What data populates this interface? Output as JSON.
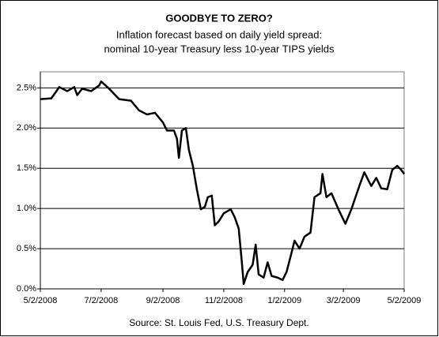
{
  "chart_data": {
    "type": "line",
    "title": "GOODBYE TO ZERO?",
    "subtitle": [
      "Inflation forecast based on daily yield spread:",
      "nominal 10-year Treasury less 10-year TIPS yields"
    ],
    "source": "Source: St. Louis Fed, U.S. Treasury Dept.",
    "x": [
      "5/2/2008",
      "5/13/2008",
      "5/21/2008",
      "5/29/2008",
      "6/5/2008",
      "6/8/2008",
      "6/13/2008",
      "6/22/2008",
      "6/30/2008",
      "7/2/2008",
      "7/10/2008",
      "7/20/2008",
      "8/1/2008",
      "8/9/2008",
      "8/17/2008",
      "8/25/2008",
      "9/2/2008",
      "9/6/2008",
      "9/13/2008",
      "9/16/2008",
      "9/18/2008",
      "9/21/2008",
      "9/25/2008",
      "9/28/2008",
      "10/2/2008",
      "10/6/2008",
      "10/10/2008",
      "10/14/2008",
      "10/17/2008",
      "10/21/2008",
      "10/24/2008",
      "10/28/2008",
      "11/2/2008",
      "11/9/2008",
      "11/13/2008",
      "11/17/2008",
      "11/20/2008",
      "11/22/2008",
      "11/26/2008",
      "12/1/2008",
      "12/4/2008",
      "12/7/2008",
      "12/12/2008",
      "12/16/2008",
      "12/20/2008",
      "12/26/2008",
      "12/31/2008",
      "1/4/2009",
      "1/9/2009",
      "1/12/2009",
      "1/17/2009",
      "1/22/2009",
      "1/28/2009",
      "2/1/2009",
      "2/7/2009",
      "2/9/2009",
      "2/13/2009",
      "2/18/2009",
      "2/25/2009",
      "3/4/2009",
      "3/10/2009",
      "3/18/2009",
      "3/23/2009",
      "3/30/2009",
      "4/4/2009",
      "4/9/2009",
      "4/15/2009",
      "4/20/2009",
      "4/25/2009",
      "4/29/2009",
      "5/2/2009"
    ],
    "values": [
      2.36,
      2.37,
      2.51,
      2.46,
      2.51,
      2.41,
      2.49,
      2.46,
      2.53,
      2.58,
      2.49,
      2.36,
      2.34,
      2.22,
      2.17,
      2.19,
      2.07,
      1.97,
      1.97,
      1.87,
      1.63,
      1.97,
      2.0,
      1.73,
      1.53,
      1.24,
      0.99,
      1.02,
      1.14,
      1.16,
      0.79,
      0.84,
      0.94,
      0.99,
      0.89,
      0.75,
      0.35,
      0.06,
      0.21,
      0.3,
      0.55,
      0.18,
      0.14,
      0.33,
      0.16,
      0.14,
      0.11,
      0.21,
      0.45,
      0.6,
      0.5,
      0.65,
      0.7,
      1.14,
      1.19,
      1.43,
      1.14,
      1.19,
      0.99,
      0.81,
      0.99,
      1.28,
      1.45,
      1.28,
      1.38,
      1.25,
      1.24,
      1.48,
      1.53,
      1.48,
      1.43
    ],
    "color": "#000000",
    "xlim": [
      "5/2/2008",
      "5/2/2009"
    ],
    "xticks": [
      "5/2/2008",
      "7/2/2008",
      "9/2/2008",
      "11/2/2008",
      "1/2/2009",
      "3/2/2009",
      "5/2/2009"
    ],
    "ylim": [
      0,
      2.7
    ],
    "yticks": [
      {
        "value": 0,
        "label": "0.0%"
      },
      {
        "value": 0.5,
        "label": "0.5%"
      },
      {
        "value": 1,
        "label": "1.0%"
      },
      {
        "value": 1.5,
        "label": "1.5%"
      },
      {
        "value": 2,
        "label": "2.0%"
      },
      {
        "value": 2.5,
        "label": "2.5%"
      }
    ],
    "grid": true
  }
}
